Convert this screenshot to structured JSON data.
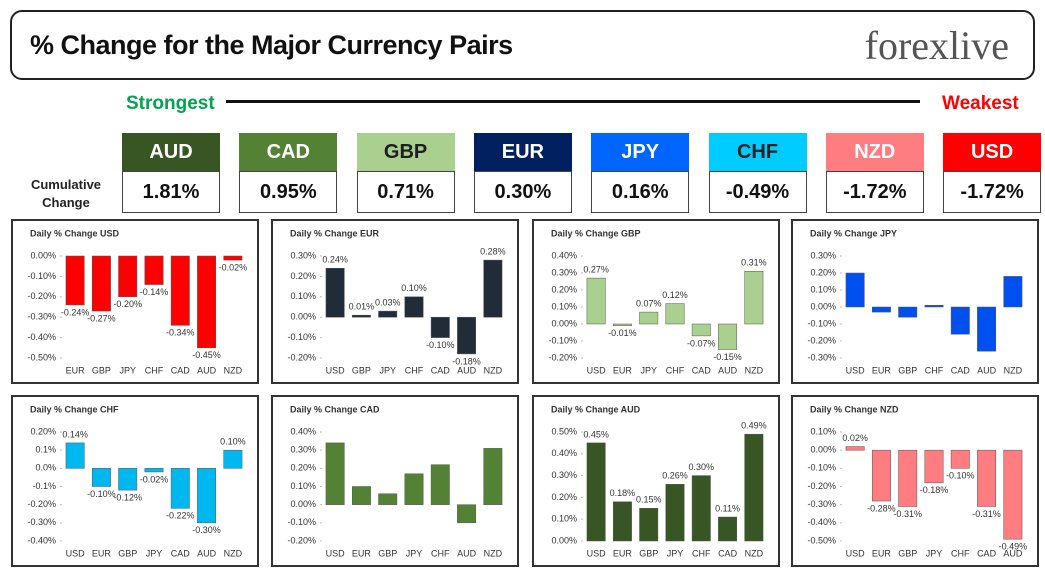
{
  "header": {
    "title": "% Change for the Major Currency Pairs",
    "logo": "forexlive",
    "strongest": "Strongest",
    "weakest": "Weakest",
    "row_label": "Cumulative Change"
  },
  "ranking": [
    {
      "currency": "AUD",
      "change": "1.81%",
      "color": "#375623",
      "text_color": "#ffffff"
    },
    {
      "currency": "CAD",
      "change": "0.95%",
      "color": "#548235",
      "text_color": "#ffffff"
    },
    {
      "currency": "GBP",
      "change": "0.71%",
      "color": "#a9d08e",
      "text_color": "#1f1f1f"
    },
    {
      "currency": "EUR",
      "change": "0.30%",
      "color": "#002060",
      "text_color": "#ffffff"
    },
    {
      "currency": "JPY",
      "change": "0.16%",
      "color": "#0066ff",
      "text_color": "#ffffff"
    },
    {
      "currency": "CHF",
      "change": "-0.49%",
      "color": "#00ccff",
      "text_color": "#1f1f1f"
    },
    {
      "currency": "NZD",
      "change": "-1.72%",
      "color": "#ff7c80",
      "text_color": "#ffffff"
    },
    {
      "currency": "USD",
      "change": "-1.72%",
      "color": "#ff0000",
      "text_color": "#ffffff"
    }
  ],
  "chart_data": [
    {
      "type": "bar",
      "title": "Daily % Change USD",
      "color": "#ff0000",
      "categories": [
        "EUR",
        "GBP",
        "JPY",
        "CHF",
        "CAD",
        "AUD",
        "NZD"
      ],
      "values": [
        -0.24,
        -0.27,
        -0.2,
        -0.14,
        -0.34,
        -0.45,
        -0.02
      ],
      "value_labels": [
        "-0.24%",
        "-0.27%",
        "-0.20%",
        "-0.14%",
        "-0.34%",
        "-0.45%",
        "-0.02%"
      ],
      "ylim": [
        -0.5,
        0.0
      ],
      "yticks": [
        {
          "value": 0.0,
          "label": "0.00%"
        },
        {
          "value": -0.1,
          "label": "-0.10%"
        },
        {
          "value": -0.2,
          "label": "-0.20%"
        },
        {
          "value": -0.3,
          "label": "-0.30%"
        },
        {
          "value": -0.4,
          "label": "-0.40%"
        },
        {
          "value": -0.5,
          "label": "-0.50%"
        }
      ]
    },
    {
      "type": "bar",
      "title": "Daily % Change EUR",
      "color": "#222b38",
      "categories": [
        "USD",
        "GBP",
        "JPY",
        "CHF",
        "CAD",
        "AUD",
        "NZD"
      ],
      "values": [
        0.24,
        0.01,
        0.03,
        0.1,
        -0.1,
        -0.18,
        0.28
      ],
      "value_labels": [
        "0.24%",
        "0.01%",
        "0.03%",
        "0.10%",
        "-0.10%",
        "-0.18%",
        "0.28%"
      ],
      "ylim": [
        -0.2,
        0.3
      ],
      "yticks": [
        {
          "value": 0.3,
          "label": "0.30%"
        },
        {
          "value": 0.2,
          "label": "0.20%"
        },
        {
          "value": 0.1,
          "label": "0.10%"
        },
        {
          "value": 0.0,
          "label": "0.00%"
        },
        {
          "value": -0.1,
          "label": "-0.10%"
        },
        {
          "value": -0.2,
          "label": "-0.20%"
        }
      ]
    },
    {
      "type": "bar",
      "title": "Daily % Change GBP",
      "color": "#a9d08e",
      "categories": [
        "USD",
        "EUR",
        "JPY",
        "CHF",
        "CAD",
        "AUD",
        "NZD"
      ],
      "values": [
        0.27,
        -0.01,
        0.07,
        0.12,
        -0.07,
        -0.15,
        0.31
      ],
      "value_labels": [
        "0.27%",
        "-0.01%",
        "0.07%",
        "0.12%",
        "-0.07%",
        "-0.15%",
        "0.31%"
      ],
      "ylim": [
        -0.2,
        0.4
      ],
      "yticks": [
        {
          "value": 0.4,
          "label": "0.40%"
        },
        {
          "value": 0.3,
          "label": "0.30%"
        },
        {
          "value": 0.2,
          "label": "0.20%"
        },
        {
          "value": 0.1,
          "label": "0.10%"
        },
        {
          "value": 0.0,
          "label": "0.00%"
        },
        {
          "value": -0.1,
          "label": "-0.10%"
        },
        {
          "value": -0.2,
          "label": "-0.20%"
        }
      ]
    },
    {
      "type": "bar",
      "title": "Daily % Change JPY",
      "color": "#0050f0",
      "categories": [
        "USD",
        "EUR",
        "GBP",
        "CHF",
        "CAD",
        "AUD",
        "NZD"
      ],
      "values": [
        0.2,
        -0.03,
        -0.06,
        0.01,
        -0.16,
        -0.26,
        0.18
      ],
      "ylim": [
        -0.3,
        0.3
      ],
      "yticks": [
        {
          "value": 0.3,
          "label": "0.30%"
        },
        {
          "value": 0.2,
          "label": "0.20%"
        },
        {
          "value": 0.1,
          "label": "0.10%"
        },
        {
          "value": 0.0,
          "label": "0.00%"
        },
        {
          "value": -0.1,
          "label": "-0.10%"
        },
        {
          "value": -0.2,
          "label": "-0.20%"
        },
        {
          "value": -0.3,
          "label": "-0.30%"
        }
      ]
    },
    {
      "type": "bar",
      "title": "Daily % Change CHF",
      "color": "#00b8f0",
      "categories": [
        "USD",
        "EUR",
        "GBP",
        "JPY",
        "CAD",
        "AUD",
        "NZD"
      ],
      "values": [
        0.14,
        -0.1,
        -0.12,
        -0.02,
        -0.22,
        -0.3,
        0.1
      ],
      "value_labels": [
        "0.14%",
        "-0.10%",
        "-0.12%",
        "-0.02%",
        "-0.22%",
        "-0.30%",
        "0.10%"
      ],
      "ylim": [
        -0.4,
        0.2
      ],
      "yticks": [
        {
          "value": 0.2,
          "label": "0.20%"
        },
        {
          "value": 0.1,
          "label": "0.1%"
        },
        {
          "value": 0.0,
          "label": "0.0%"
        },
        {
          "value": -0.1,
          "label": "-0.1%"
        },
        {
          "value": -0.2,
          "label": "-0.20%"
        },
        {
          "value": -0.3,
          "label": "-0.30%"
        },
        {
          "value": -0.4,
          "label": "-0.40%"
        }
      ]
    },
    {
      "type": "bar",
      "title": "Daily % Change CAD",
      "color": "#548235",
      "categories": [
        "USD",
        "EUR",
        "GBP",
        "JPY",
        "CHF",
        "AUD",
        "NZD"
      ],
      "values": [
        0.34,
        0.1,
        0.06,
        0.17,
        0.22,
        -0.1,
        0.31
      ],
      "ylim": [
        -0.2,
        0.4
      ],
      "yticks": [
        {
          "value": 0.4,
          "label": "0.40%"
        },
        {
          "value": 0.3,
          "label": "0.30%"
        },
        {
          "value": 0.2,
          "label": "0.20%"
        },
        {
          "value": 0.1,
          "label": "0.10%"
        },
        {
          "value": 0.0,
          "label": "0.00%"
        },
        {
          "value": -0.1,
          "label": "-0.10%"
        },
        {
          "value": -0.2,
          "label": "-0.20%"
        }
      ]
    },
    {
      "type": "bar",
      "title": "Daily % Change AUD",
      "color": "#375623",
      "categories": [
        "USD",
        "EUR",
        "GBP",
        "JPY",
        "CHF",
        "CAD",
        "NZD"
      ],
      "values": [
        0.45,
        0.18,
        0.15,
        0.26,
        0.3,
        0.11,
        0.49
      ],
      "value_labels": [
        "0.45%",
        "0.18%",
        "0.15%",
        "0.26%",
        "0.30%",
        "0.11%",
        "0.49%"
      ],
      "ylim": [
        0.0,
        0.5
      ],
      "yticks": [
        {
          "value": 0.5,
          "label": "0.50%"
        },
        {
          "value": 0.4,
          "label": "0.40%"
        },
        {
          "value": 0.3,
          "label": "0.30%"
        },
        {
          "value": 0.2,
          "label": "0.20%"
        },
        {
          "value": 0.1,
          "label": "0.10%"
        },
        {
          "value": 0.0,
          "label": "0.00%"
        }
      ]
    },
    {
      "type": "bar",
      "title": "Daily % Change NZD",
      "color": "#ff7c80",
      "categories": [
        "USD",
        "EUR",
        "GBP",
        "JPY",
        "CHF",
        "CAD",
        "AUD"
      ],
      "values": [
        0.02,
        -0.28,
        -0.31,
        -0.18,
        -0.1,
        -0.31,
        -0.49
      ],
      "value_labels": [
        "0.02%",
        "-0.28%",
        "-0.31%",
        "-0.18%",
        "-0.10%",
        "-0.31%",
        "-0.49%"
      ],
      "ylim": [
        -0.5,
        0.1
      ],
      "yticks": [
        {
          "value": 0.1,
          "label": "0.10%"
        },
        {
          "value": 0.0,
          "label": "0.00%"
        },
        {
          "value": -0.1,
          "label": "-0.10%"
        },
        {
          "value": -0.2,
          "label": "-0.20%"
        },
        {
          "value": -0.3,
          "label": "-0.30%"
        },
        {
          "value": -0.4,
          "label": "-0.40%"
        },
        {
          "value": -0.5,
          "label": "-0.50%"
        }
      ]
    }
  ]
}
